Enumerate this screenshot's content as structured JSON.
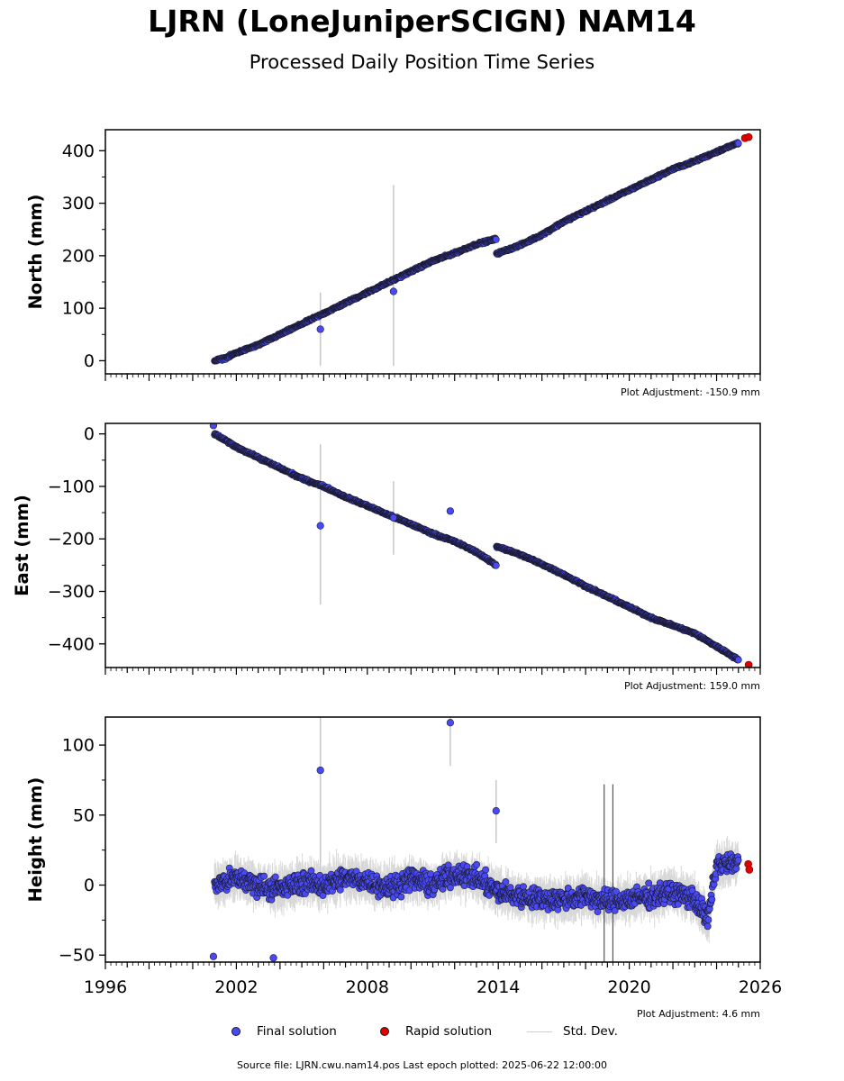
{
  "header": {
    "title": "LJRN (LoneJuniperSCIGN) NAM14",
    "subtitle": "Processed Daily Position Time Series"
  },
  "legend": {
    "final_label": "Final solution",
    "rapid_label": "Rapid solution",
    "std_label": "Std. Dev."
  },
  "footer": {
    "source": "Source file: LJRN.cwu.nam14.pos  Last epoch plotted: 2025-06-22 12:00:00"
  },
  "colors": {
    "final": "#4a4af5",
    "rapid": "#e00000",
    "std": "#c8c8c8",
    "marker_edge": "#1a1a2e"
  },
  "chart_data": [
    {
      "type": "scatter",
      "name": "north",
      "ylabel": "North (mm)",
      "ylim": [
        -25,
        440
      ],
      "yticks": [
        0,
        100,
        200,
        300,
        400
      ],
      "xlim": [
        1996,
        2026
      ],
      "adjustment": "Plot Adjustment: -150.9 mm",
      "series": [
        {
          "name": "Final solution",
          "x": [
            2001.0,
            2001.5,
            2002.0,
            2003.0,
            2004.0,
            2005.0,
            2006.0,
            2007.0,
            2008.0,
            2009.0,
            2010.0,
            2011.0,
            2012.0,
            2013.0,
            2013.9,
            2014.0,
            2015.0,
            2016.0,
            2017.0,
            2018.0,
            2019.0,
            2020.0,
            2021.0,
            2022.0,
            2023.0,
            2024.0,
            2025.0
          ],
          "y": [
            0,
            5,
            15,
            30,
            50,
            70,
            90,
            110,
            130,
            150,
            170,
            190,
            205,
            222,
            232,
            205,
            220,
            240,
            265,
            285,
            305,
            325,
            345,
            365,
            380,
            398,
            415
          ]
        },
        {
          "name": "Rapid solution",
          "x": [
            2025.3,
            2025.47
          ],
          "y": [
            424,
            426
          ]
        }
      ],
      "outliers": [
        {
          "x": 2005.85,
          "y": 60,
          "err_low": -10,
          "err_high": 130
        },
        {
          "x": 2009.2,
          "y": 132,
          "err_low": -10,
          "err_high": 335
        }
      ]
    },
    {
      "type": "scatter",
      "name": "east",
      "ylabel": "East (mm)",
      "ylim": [
        -445,
        20
      ],
      "yticks": [
        0,
        -100,
        -200,
        -300,
        -400
      ],
      "xlim": [
        1996,
        2026
      ],
      "adjustment": "Plot Adjustment: 159.0 mm",
      "series": [
        {
          "name": "Final solution",
          "x": [
            2001.0,
            2002.0,
            2003.0,
            2004.0,
            2005.0,
            2006.0,
            2007.0,
            2008.0,
            2009.0,
            2010.0,
            2011.0,
            2012.0,
            2013.0,
            2013.9,
            2014.0,
            2015.0,
            2016.0,
            2017.0,
            2018.0,
            2019.0,
            2020.0,
            2021.0,
            2022.0,
            2023.0,
            2024.0,
            2025.0
          ],
          "y": [
            0,
            -25,
            -45,
            -65,
            -85,
            -100,
            -120,
            -137,
            -155,
            -172,
            -190,
            -205,
            -225,
            -250,
            -215,
            -230,
            -248,
            -268,
            -290,
            -310,
            -330,
            -350,
            -365,
            -380,
            -405,
            -430
          ]
        },
        {
          "name": "Rapid solution",
          "x": [
            2025.47
          ],
          "y": [
            -440
          ]
        }
      ],
      "outliers": [
        {
          "x": 2005.85,
          "y": -175,
          "err_low": -325,
          "err_high": -20
        },
        {
          "x": 2009.2,
          "y": -160,
          "err_low": -230,
          "err_high": -90
        },
        {
          "x": 2011.8,
          "y": -147,
          "err_low": -147,
          "err_high": -147
        },
        {
          "x": 2000.95,
          "y": 16,
          "err_low": 16,
          "err_high": 16
        }
      ]
    },
    {
      "type": "scatter",
      "name": "height",
      "ylabel": "Height (mm)",
      "ylim": [
        -55,
        120
      ],
      "yticks": [
        -50,
        0,
        50,
        100
      ],
      "xlim": [
        1996,
        2026
      ],
      "xticks": [
        1996,
        2002,
        2008,
        2014,
        2020,
        2026
      ],
      "adjustment": "Plot Adjustment: 4.6 mm",
      "series": [
        {
          "name": "Final solution",
          "x": [
            2001.0,
            2002.0,
            2003.0,
            2004.0,
            2005.0,
            2006.0,
            2007.0,
            2008.0,
            2009.0,
            2010.0,
            2011.0,
            2012.0,
            2013.0,
            2014.0,
            2015.0,
            2016.0,
            2017.0,
            2018.0,
            2019.0,
            2020.0,
            2021.0,
            2022.0,
            2023.0,
            2023.6,
            2024.0,
            2025.0
          ],
          "y": [
            0,
            5,
            0,
            -3,
            2,
            0,
            5,
            3,
            -2,
            5,
            0,
            8,
            5,
            -5,
            -8,
            -10,
            -10,
            -8,
            -12,
            -10,
            -8,
            -5,
            -10,
            -25,
            15,
            15
          ]
        },
        {
          "name": "Rapid solution",
          "x": [
            2025.45,
            2025.5
          ],
          "y": [
            15,
            11
          ]
        }
      ],
      "outliers": [
        {
          "x": 2005.85,
          "y": 82,
          "err_low": -10,
          "err_high": 120
        },
        {
          "x": 2011.8,
          "y": 116,
          "err_low": 85,
          "err_high": 120
        },
        {
          "x": 2013.9,
          "y": 53,
          "err_low": 30,
          "err_high": 75
        },
        {
          "x": 2000.95,
          "y": -51,
          "err_low": -51,
          "err_high": -51
        },
        {
          "x": 2003.7,
          "y": -52,
          "err_low": -52,
          "err_high": -52
        }
      ]
    }
  ]
}
